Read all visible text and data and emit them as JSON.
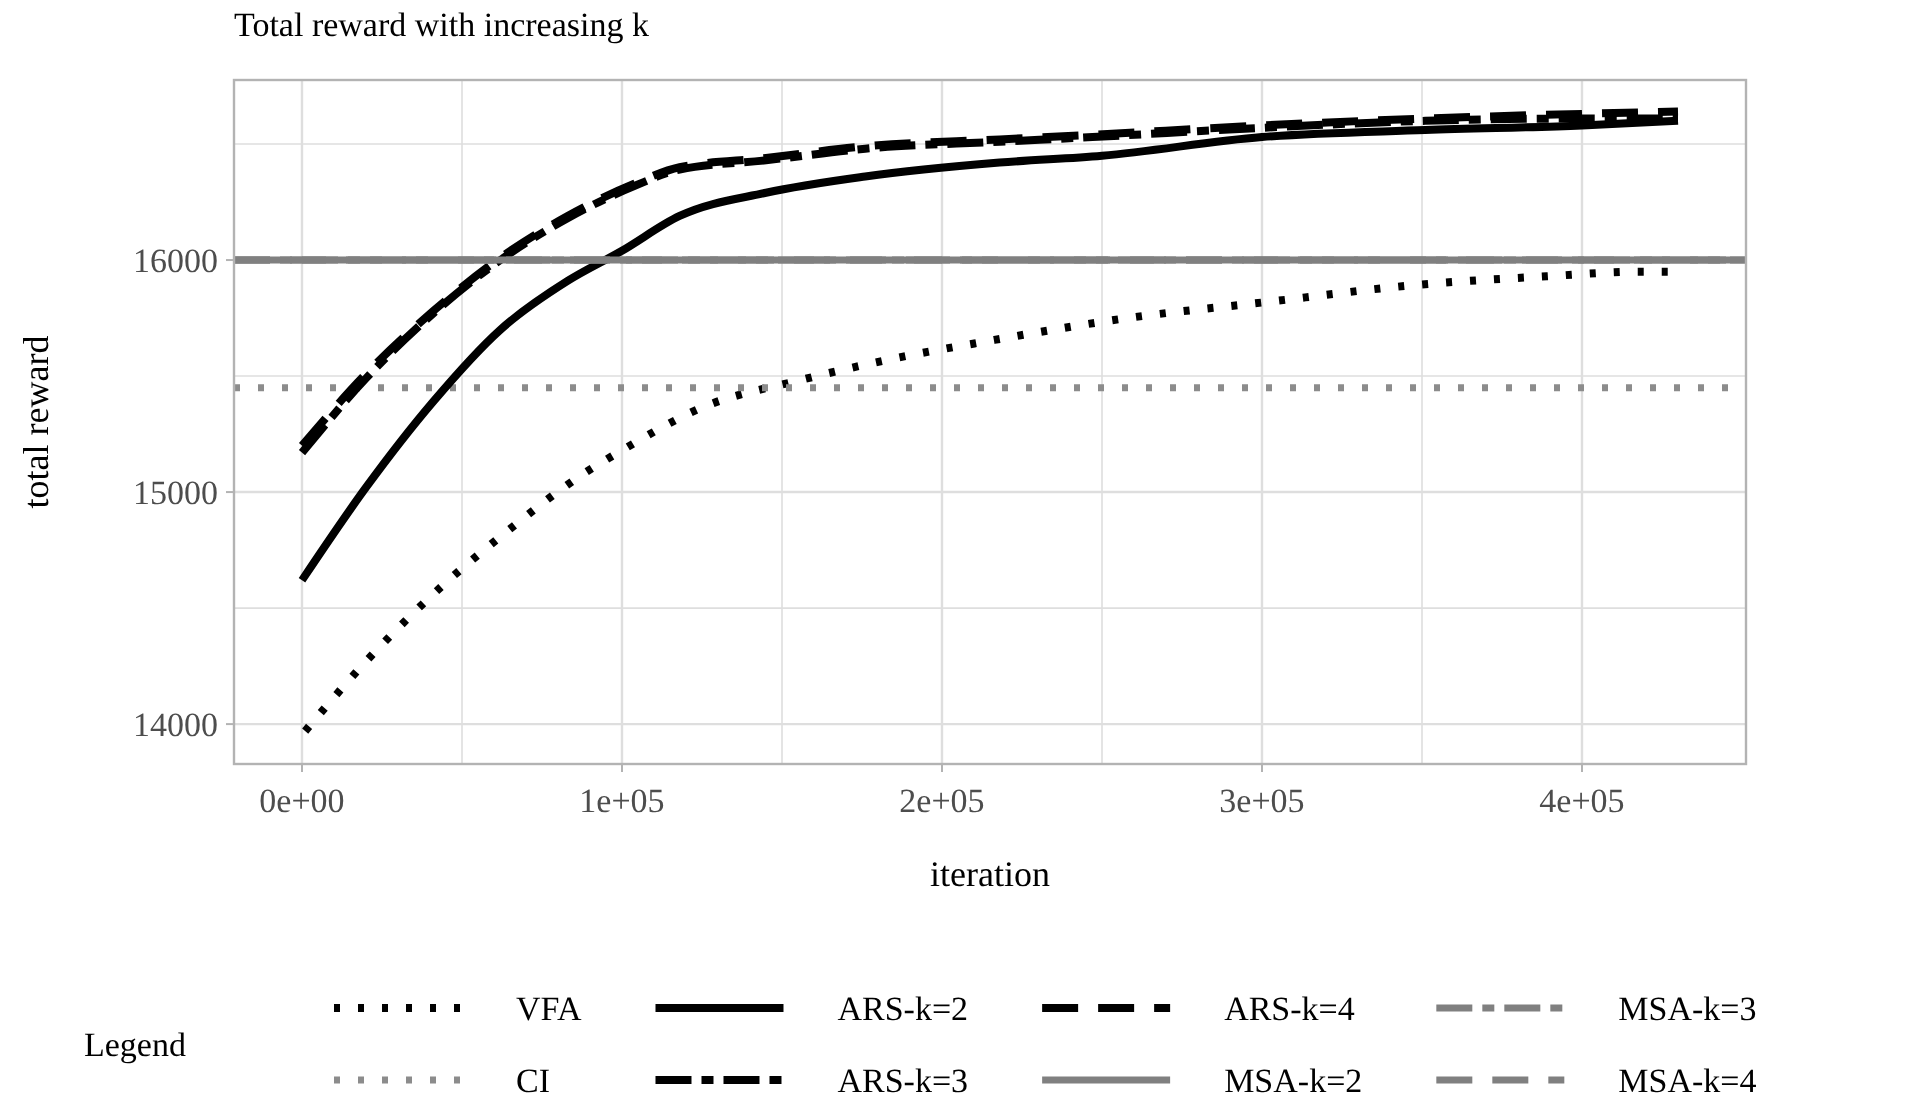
{
  "chart_data": {
    "type": "line",
    "title": "Total reward with increasing k",
    "xlabel": "iteration",
    "ylabel": "total reward",
    "legend_title": "Legend",
    "xlim": [
      -21250,
      451250
    ],
    "ylim": [
      13828,
      16776
    ],
    "xticks": [
      {
        "value": 0,
        "label": "0e+00"
      },
      {
        "value": 50000,
        "label": null
      },
      {
        "value": 100000,
        "label": "1e+05"
      },
      {
        "value": 150000,
        "label": null
      },
      {
        "value": 200000,
        "label": "2e+05"
      },
      {
        "value": 250000,
        "label": null
      },
      {
        "value": 300000,
        "label": "3e+05"
      },
      {
        "value": 350000,
        "label": null
      },
      {
        "value": 400000,
        "label": "4e+05"
      }
    ],
    "yticks": [
      14000,
      {
        "value": 14500,
        "label": null
      },
      15000,
      {
        "value": 15500,
        "label": null
      },
      16000,
      {
        "value": 16500,
        "label": null
      }
    ],
    "grid": true,
    "legend": "bottom",
    "series": [
      {
        "name": "VFA",
        "color": "#000000",
        "line_style": "dotted",
        "x": [
          1000,
          20000,
          41000,
          64000,
          87000,
          100000,
          126000,
          155000,
          183000,
          214000,
          258000,
          302000,
          346000,
          389000,
          419000,
          430000
        ],
        "values": [
          13970,
          14270,
          14560,
          14830,
          15070,
          15180,
          15370,
          15480,
          15570,
          15650,
          15750,
          15820,
          15890,
          15930,
          15950,
          15950
        ]
      },
      {
        "name": "CI",
        "color": "#8c8c8c",
        "line_style": "dotted",
        "x": [
          -21250,
          451250
        ],
        "values": [
          15450,
          15450
        ]
      },
      {
        "name": "ARS-k=2",
        "color": "#000000",
        "line_style": "solid",
        "x": [
          0,
          20000,
          41000,
          62000,
          83000,
          100000,
          118000,
          145000,
          176000,
          218000,
          250000,
          300000,
          351000,
          400000,
          430000
        ],
        "values": [
          14620,
          15020,
          15390,
          15700,
          15910,
          16040,
          16190,
          16290,
          16360,
          16420,
          16450,
          16530,
          16560,
          16580,
          16600
        ]
      },
      {
        "name": "ARS-k=3",
        "color": "#000000",
        "line_style": "dashdot",
        "x": [
          0,
          20000,
          41000,
          62000,
          83000,
          104000,
          118000,
          145000,
          176000,
          218000,
          247000,
          300000,
          351000,
          400000,
          430000
        ],
        "values": [
          15170,
          15490,
          15770,
          16000,
          16180,
          16320,
          16390,
          16430,
          16480,
          16510,
          16530,
          16570,
          16600,
          16610,
          16610
        ]
      },
      {
        "name": "ARS-k=4",
        "color": "#000000",
        "line_style": "dashed",
        "x": [
          0,
          20000,
          41000,
          62000,
          83000,
          104000,
          118000,
          145000,
          176000,
          218000,
          247000,
          300000,
          351000,
          400000,
          430000
        ],
        "values": [
          15200,
          15510,
          15780,
          16010,
          16190,
          16330,
          16400,
          16440,
          16490,
          16520,
          16540,
          16580,
          16610,
          16630,
          16640
        ]
      },
      {
        "name": "MSA-k=2",
        "color": "#808080",
        "line_style": "solid",
        "x": [
          -21250,
          451250
        ],
        "values": [
          16000,
          16000
        ]
      },
      {
        "name": "MSA-k=3",
        "color": "#808080",
        "line_style": "dashdot",
        "x": [
          -21250,
          451250
        ],
        "values": [
          16000,
          16000
        ]
      },
      {
        "name": "MSA-k=4",
        "color": "#808080",
        "line_style": "dashed",
        "x": [
          -21250,
          451250
        ],
        "values": [
          16000,
          16000
        ]
      }
    ]
  }
}
